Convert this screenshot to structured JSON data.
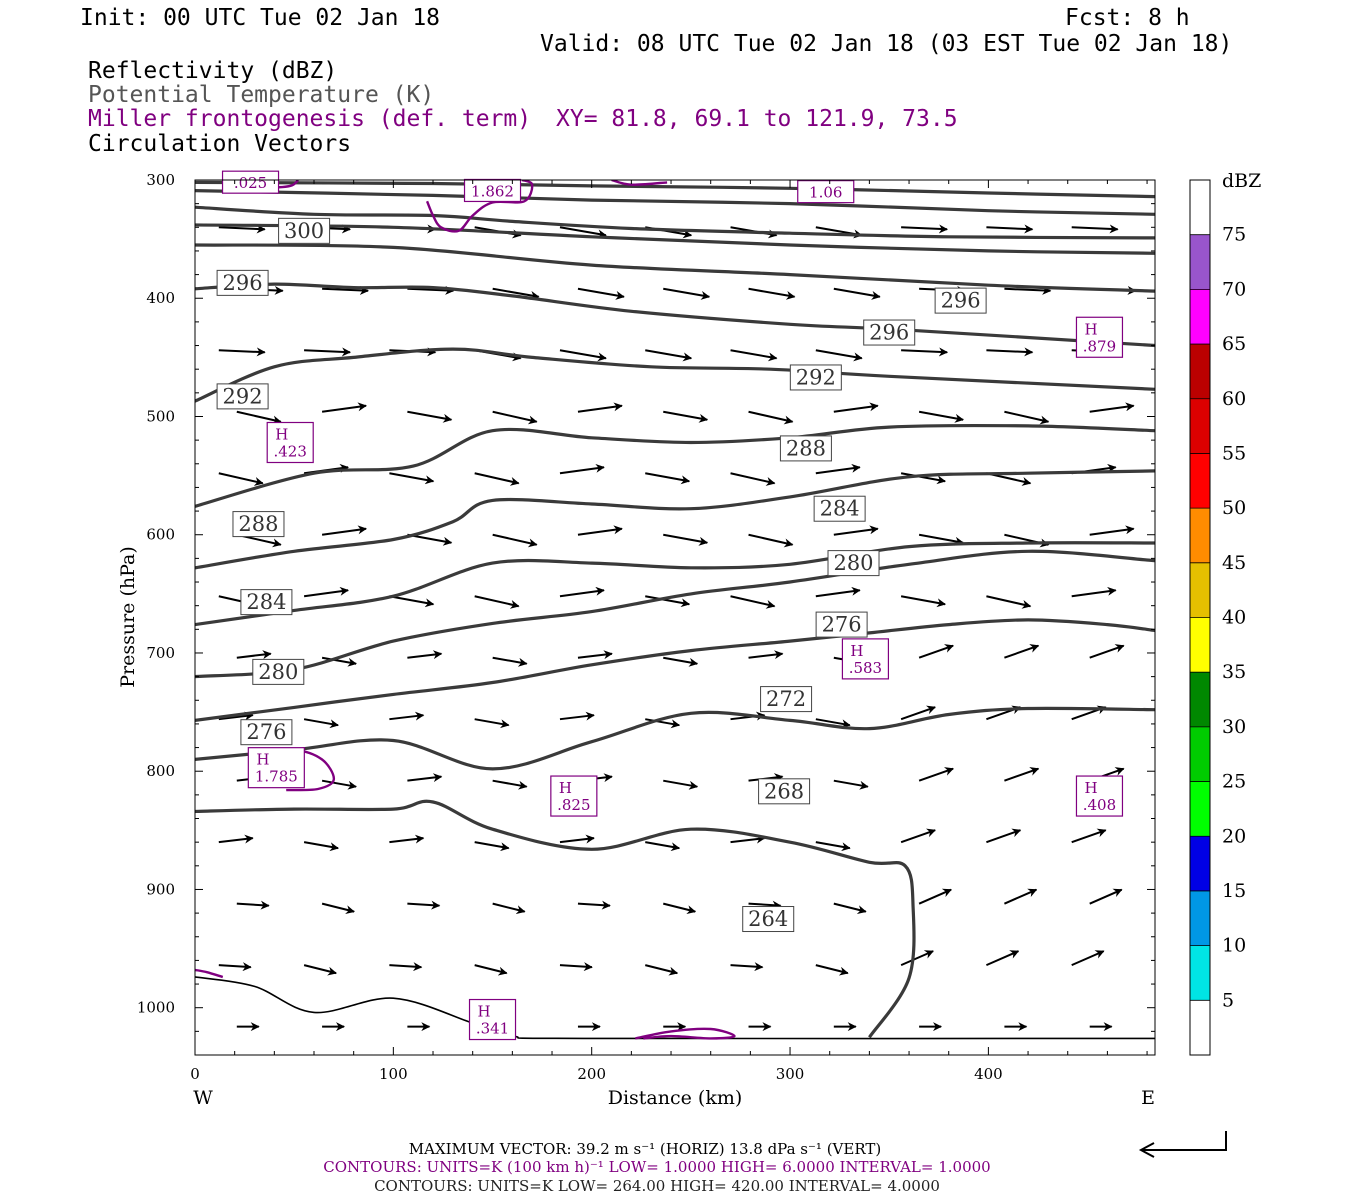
{
  "header": {
    "init": "Init: 00 UTC Tue 02 Jan 18",
    "fcst": "Fcst:    8 h",
    "valid": "Valid: 08 UTC Tue 02 Jan 18 (03 EST Tue 02 Jan 18)",
    "field1": "Reflectivity (dBZ)",
    "field2": "Potential Temperature (K)",
    "field3": "Miller frontogenesis (def. term)",
    "xy": "XY=  81.8, 69.1 to 121.9, 73.5",
    "field4": "Circulation Vectors"
  },
  "colors": {
    "theta": "#3a3a3a",
    "frontogenesis": "#800080",
    "vectors": "#000000",
    "potential_temperature_text": "#555555"
  },
  "footer": {
    "max_vector": "MAXIMUM VECTOR:  39.2 m s⁻¹ (HORIZ)          13.8 dPa s⁻¹ (VERT)",
    "contours_purple": "CONTOURS:  UNITS=K (100 km h)⁻¹  LOW=   1.0000       HIGH=   6.0000       INTERVAL=    1.0000",
    "contours_black": "CONTOURS:  UNITS=K  LOW=   264.00          HIGH=   420.00          INTERVAL=     4.0000"
  },
  "colorbar": {
    "title": "dBZ",
    "labels": [
      "5",
      "10",
      "15",
      "20",
      "25",
      "30",
      "35",
      "40",
      "45",
      "50",
      "55",
      "60",
      "65",
      "70",
      "75"
    ],
    "colors": [
      "#00e5e5",
      "#0097e5",
      "#0000e5",
      "#00ff00",
      "#00cc00",
      "#008800",
      "#ffff00",
      "#e5c000",
      "#ff8c00",
      "#ff0000",
      "#dd0000",
      "#bb0000",
      "#ff00ff",
      "#9955cc",
      "#ffffff"
    ]
  },
  "chart_data": {
    "type": "line",
    "title": "",
    "xlabel": "Distance (km)",
    "ylabel": "Pressure (hPa)",
    "xlim": [
      0,
      484
    ],
    "ylim": [
      1040,
      300
    ],
    "y_scale": "linear",
    "x_ticks": [
      0,
      100,
      200,
      300,
      400
    ],
    "y_ticks": [
      300,
      400,
      500,
      600,
      700,
      800,
      900,
      1000
    ],
    "x_end_labels": {
      "left": "W",
      "right": "E"
    },
    "theta_contours": [
      {
        "level": 300,
        "points": [
          [
            0,
            323
          ],
          [
            60,
            329
          ],
          [
            120,
            330
          ],
          [
            160,
            335
          ],
          [
            220,
            341
          ],
          [
            300,
            345
          ],
          [
            380,
            348
          ],
          [
            484,
            349
          ]
        ]
      },
      {
        "level": 296,
        "points": [
          [
            0,
            392
          ],
          [
            40,
            388
          ],
          [
            80,
            391
          ],
          [
            120,
            391
          ],
          [
            160,
            398
          ],
          [
            220,
            411
          ],
          [
            300,
            422
          ],
          [
            360,
            427
          ],
          [
            484,
            440
          ]
        ]
      },
      {
        "level": 292,
        "points": [
          [
            0,
            487
          ],
          [
            40,
            458
          ],
          [
            80,
            450
          ],
          [
            130,
            443
          ],
          [
            170,
            450
          ],
          [
            230,
            458
          ],
          [
            290,
            460
          ],
          [
            350,
            466
          ],
          [
            484,
            477
          ]
        ]
      },
      {
        "level": 288,
        "points": [
          [
            0,
            576
          ],
          [
            60,
            548
          ],
          [
            110,
            542
          ],
          [
            150,
            512
          ],
          [
            200,
            518
          ],
          [
            250,
            522
          ],
          [
            300,
            518
          ],
          [
            350,
            509
          ],
          [
            420,
            508
          ],
          [
            484,
            512
          ]
        ]
      },
      {
        "level": 284,
        "points": [
          [
            0,
            628
          ],
          [
            50,
            614
          ],
          [
            100,
            604
          ],
          [
            130,
            589
          ],
          [
            150,
            571
          ],
          [
            200,
            574
          ],
          [
            250,
            578
          ],
          [
            300,
            568
          ],
          [
            360,
            551
          ],
          [
            420,
            548
          ],
          [
            484,
            546
          ]
        ]
      },
      {
        "level": 280,
        "points": [
          [
            0,
            676
          ],
          [
            50,
            664
          ],
          [
            100,
            652
          ],
          [
            150,
            624
          ],
          [
            200,
            624
          ],
          [
            250,
            628
          ],
          [
            300,
            625
          ],
          [
            360,
            610
          ],
          [
            420,
            607
          ],
          [
            484,
            607
          ]
        ]
      },
      {
        "level": 276,
        "points": [
          [
            0,
            720
          ],
          [
            50,
            714
          ],
          [
            100,
            690
          ],
          [
            150,
            675
          ],
          [
            200,
            665
          ],
          [
            250,
            650
          ],
          [
            300,
            640
          ],
          [
            360,
            625
          ],
          [
            420,
            614
          ],
          [
            484,
            622
          ]
        ]
      },
      {
        "level": 272,
        "points": [
          [
            0,
            757
          ],
          [
            50,
            746
          ],
          [
            100,
            735
          ],
          [
            150,
            725
          ],
          [
            200,
            710
          ],
          [
            250,
            698
          ],
          [
            300,
            690
          ],
          [
            340,
            683
          ],
          [
            380,
            676
          ],
          [
            420,
            672
          ],
          [
            460,
            676
          ],
          [
            484,
            681
          ]
        ]
      },
      {
        "level": 268,
        "points": [
          [
            0,
            790
          ],
          [
            50,
            782
          ],
          [
            100,
            774
          ],
          [
            150,
            798
          ],
          [
            200,
            775
          ],
          [
            250,
            751
          ],
          [
            300,
            757
          ],
          [
            340,
            764
          ],
          [
            380,
            752
          ],
          [
            420,
            747
          ],
          [
            484,
            748
          ]
        ]
      },
      {
        "level": 264,
        "points": [
          [
            0,
            834
          ],
          [
            50,
            832
          ],
          [
            100,
            832
          ],
          [
            120,
            826
          ],
          [
            150,
            849
          ],
          [
            200,
            866
          ],
          [
            250,
            849
          ],
          [
            300,
            860
          ],
          [
            340,
            877
          ],
          [
            358,
            880
          ],
          [
            362,
            913
          ],
          [
            360,
            975
          ],
          [
            340,
            1025
          ]
        ]
      }
    ],
    "surface_line": {
      "points": [
        [
          0,
          974
        ],
        [
          30,
          982
        ],
        [
          60,
          1004
        ],
        [
          100,
          992
        ],
        [
          140,
          1013
        ],
        [
          160,
          1024
        ],
        [
          200,
          1026
        ],
        [
          484,
          1026
        ]
      ]
    },
    "frontogenesis_maxima": [
      {
        "label": "H",
        "value": ".423",
        "x": 48,
        "p": 522
      },
      {
        "label": "H",
        "value": "1.785",
        "x": 41,
        "p": 797
      },
      {
        "label": "H",
        "value": ".825",
        "x": 191,
        "p": 821
      },
      {
        "label": "H",
        "value": ".341",
        "x": 150,
        "p": 1010
      },
      {
        "label": "H",
        "value": ".583",
        "x": 338,
        "p": 705
      },
      {
        "label": "H",
        "value": ".408",
        "x": 456,
        "p": 821
      },
      {
        "label": "H",
        "value": ".879",
        "x": 456,
        "p": 433
      }
    ],
    "frontogenesis_labels_partial": [
      {
        "value": "1.862",
        "x": 150,
        "p": 308
      },
      {
        "value": "1.06",
        "x": 318,
        "p": 309
      },
      {
        "value": ".025",
        "x": 28,
        "p": 301
      }
    ],
    "vector_reference": {
      "horiz": "39.2 m s⁻¹",
      "vert": "13.8 dPa s⁻¹"
    }
  }
}
